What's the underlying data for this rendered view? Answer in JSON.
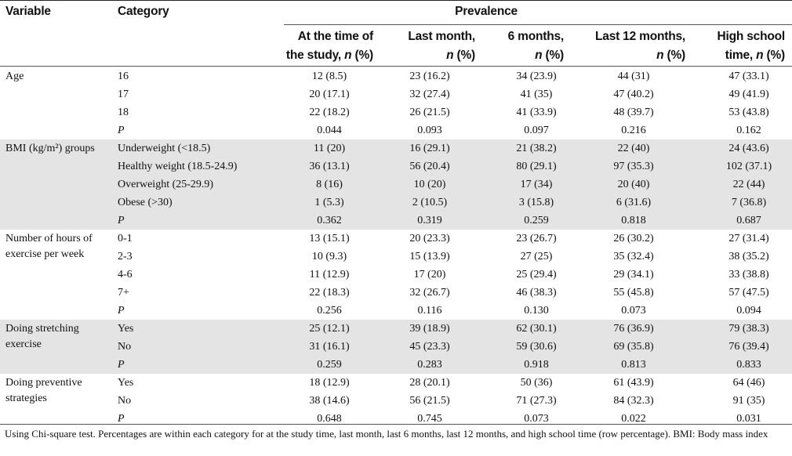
{
  "headers": {
    "variable": "Variable",
    "category": "Category",
    "prevalence": "Prevalence",
    "columns": [
      {
        "line1": "At the time of",
        "line2": "the study, ",
        "unit": "n",
        "pct": " (%)"
      },
      {
        "line1": "Last month,",
        "line2": "",
        "unit": "n",
        "pct": " (%)"
      },
      {
        "line1": "6 months,",
        "line2": "",
        "unit": "n",
        "pct": " (%)"
      },
      {
        "line1": "Last 12 months,",
        "line2": "",
        "unit": "n",
        "pct": " (%)"
      },
      {
        "line1": "High school",
        "line2": "time, ",
        "unit": "n",
        "pct": " (%)"
      }
    ]
  },
  "groups": [
    {
      "variable": "Age",
      "rows": [
        {
          "category": "16",
          "values": [
            "12 (8.5)",
            "23 (16.2)",
            "34 (23.9)",
            "44 (31)",
            "47 (33.1)"
          ]
        },
        {
          "category": "17",
          "values": [
            "20 (17.1)",
            "32 (27.4)",
            "41 (35)",
            "47 (40.2)",
            "49 (41.9)"
          ]
        },
        {
          "category": "18",
          "values": [
            "22 (18.2)",
            "26 (21.5)",
            "41 (33.9)",
            "48 (39.7)",
            "53 (43.8)"
          ]
        },
        {
          "category": "P",
          "italic": true,
          "values": [
            "0.044",
            "0.093",
            "0.097",
            "0.216",
            "0.162"
          ]
        }
      ]
    },
    {
      "variable": "BMI (kg/m²) groups",
      "rows": [
        {
          "category": "Underweight (<18.5)",
          "values": [
            "11 (20)",
            "16 (29.1)",
            "21 (38.2)",
            "22 (40)",
            "24 (43.6)"
          ]
        },
        {
          "category": "Healthy weight (18.5-24.9)",
          "values": [
            "36 (13.1)",
            "56 (20.4)",
            "80 (29.1)",
            "97 (35.3)",
            "102 (37.1)"
          ]
        },
        {
          "category": "Overweight (25-29.9)",
          "values": [
            "8 (16)",
            "10 (20)",
            "17 (34)",
            "20 (40)",
            "22 (44)"
          ]
        },
        {
          "category": "Obese (>30)",
          "values": [
            "1 (5.3)",
            "2 (10.5)",
            "3 (15.8)",
            "6 (31.6)",
            "7 (36.8)"
          ]
        },
        {
          "category": "P",
          "italic": true,
          "values": [
            "0.362",
            "0.319",
            "0.259",
            "0.818",
            "0.687"
          ]
        }
      ]
    },
    {
      "variable": "Number of hours of exercise per week",
      "rows": [
        {
          "category": "0-1",
          "values": [
            "13 (15.1)",
            "20 (23.3)",
            "23 (26.7)",
            "26 (30.2)",
            "27 (31.4)"
          ]
        },
        {
          "category": "2-3",
          "values": [
            "10 (9.3)",
            "15 (13.9)",
            "27 (25)",
            "35 (32.4)",
            "38 (35.2)"
          ]
        },
        {
          "category": "4-6",
          "values": [
            "11 (12.9)",
            "17 (20)",
            "25 (29.4)",
            "29 (34.1)",
            "33 (38.8)"
          ]
        },
        {
          "category": "7+",
          "values": [
            "22 (18.3)",
            "32 (26.7)",
            "46 (38.3)",
            "55 (45.8)",
            "57 (47.5)"
          ]
        },
        {
          "category": "P",
          "italic": true,
          "values": [
            "0.256",
            "0.116",
            "0.130",
            "0.073",
            "0.094"
          ]
        }
      ]
    },
    {
      "variable": "Doing stretching exercise",
      "rows": [
        {
          "category": "Yes",
          "values": [
            "25 (12.1)",
            "39 (18.9)",
            "62 (30.1)",
            "76 (36.9)",
            "79 (38.3)"
          ]
        },
        {
          "category": "No",
          "values": [
            "31 (16.1)",
            "45 (23.3)",
            "59 (30.6)",
            "69 (35.8)",
            "76 (39.4)"
          ]
        },
        {
          "category": "P",
          "italic": true,
          "values": [
            "0.259",
            "0.283",
            "0.918",
            "0.813",
            "0.833"
          ]
        }
      ]
    },
    {
      "variable": "Doing preventive strategies",
      "rows": [
        {
          "category": "Yes",
          "values": [
            "18 (12.9)",
            "28 (20.1)",
            "50 (36)",
            "61 (43.9)",
            "64 (46)"
          ]
        },
        {
          "category": "No",
          "values": [
            "38 (14.6)",
            "56 (21.5)",
            "71 (27.3)",
            "84 (32.3)",
            "91 (35)"
          ]
        },
        {
          "category": "P",
          "italic": true,
          "values": [
            "0.648",
            "0.745",
            "0.073",
            "0.022",
            "0.031"
          ]
        }
      ]
    }
  ],
  "footnote": "Using Chi-square test. Percentages are within each category for at the study time, last month, last 6 months, last 12 months, and high school time (row percentage). BMI: Body mass index"
}
